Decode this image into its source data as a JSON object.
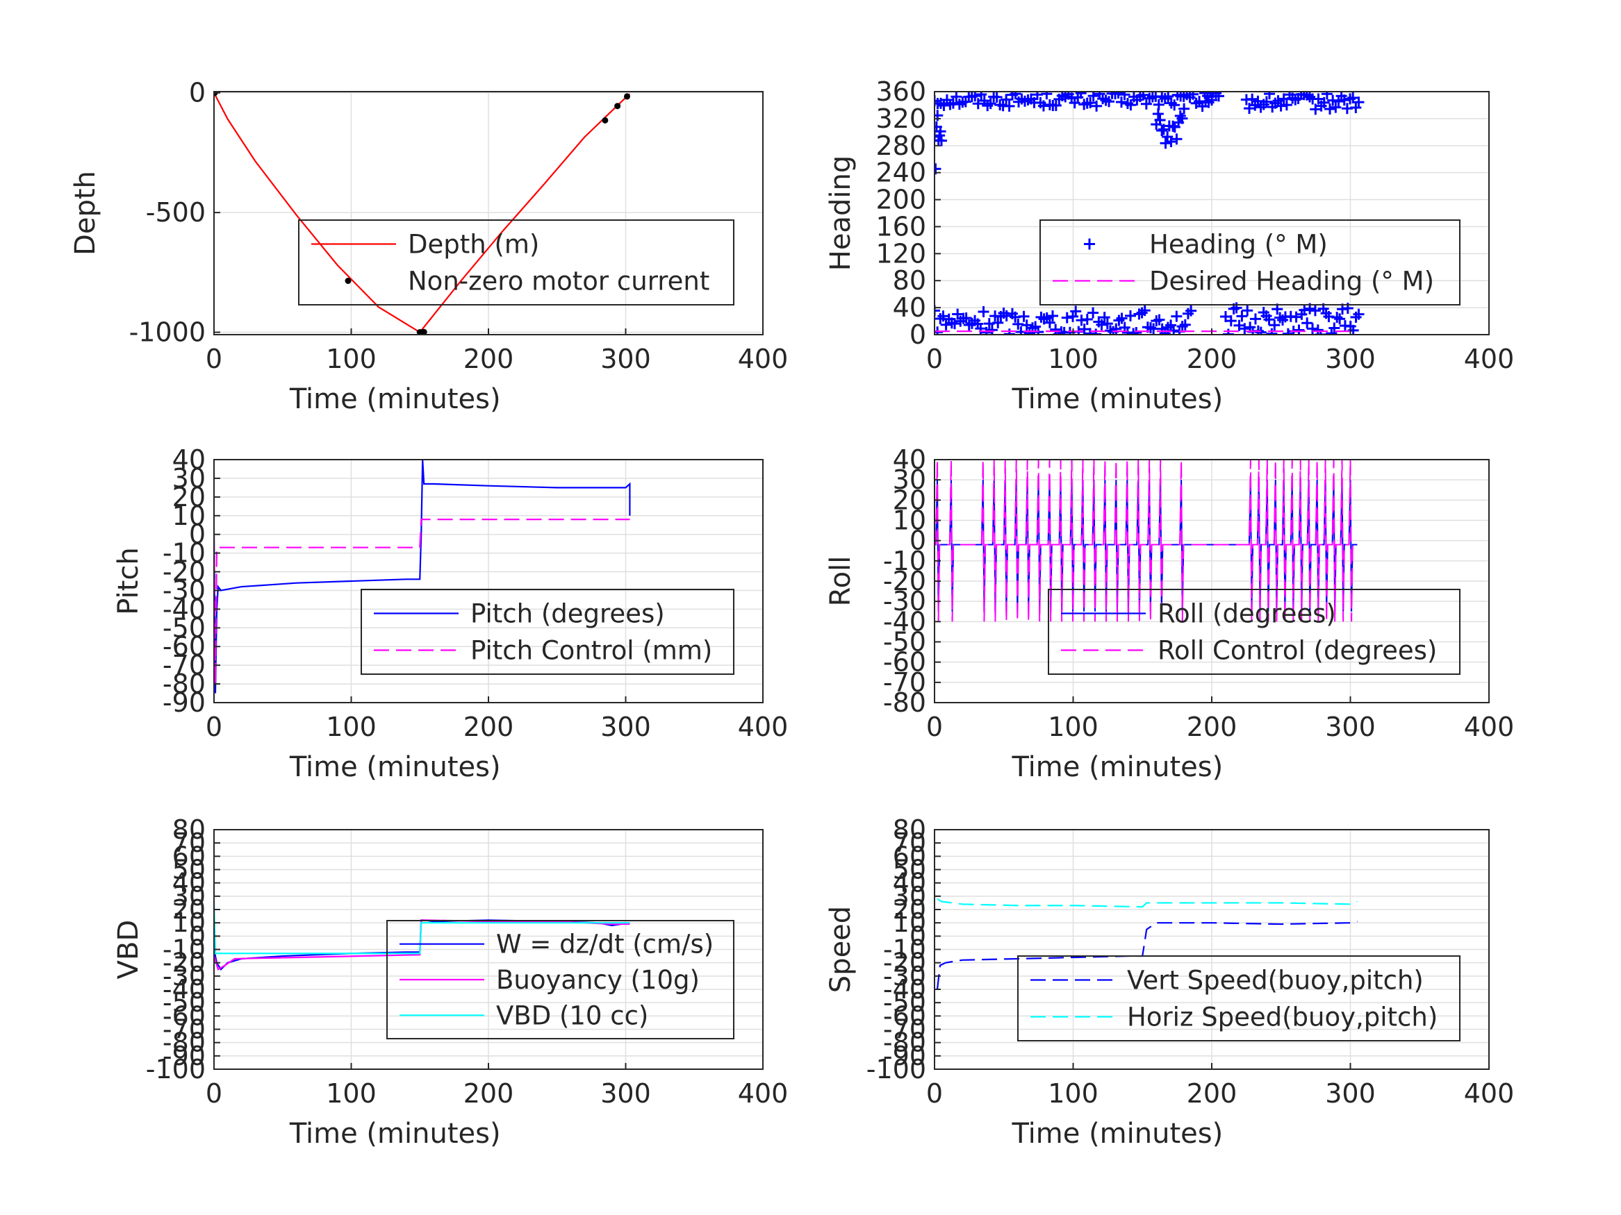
{
  "chart_data": [
    {
      "id": "depth",
      "type": "line",
      "xlabel": "Time (minutes)",
      "ylabel": "Depth",
      "xlim": [
        0,
        400
      ],
      "ylim": [
        -1010,
        5
      ],
      "xticks": [
        0,
        100,
        200,
        300,
        400
      ],
      "yticks": [
        0,
        -500,
        -1000
      ],
      "grid": true,
      "legend_position": "lower-right",
      "series": [
        {
          "name": "Depth (m)",
          "style": "line",
          "color": "#ff0000",
          "x": [
            0,
            10,
            30,
            60,
            90,
            120,
            150,
            180,
            210,
            240,
            270,
            300,
            303
          ],
          "y": [
            0,
            -110,
            -285,
            -510,
            -720,
            -895,
            -1000,
            -785,
            -580,
            -385,
            -185,
            -20,
            -5
          ]
        },
        {
          "name": "Non-zero motor current",
          "style": "dots",
          "color": "#000000",
          "x": [
            0.5,
            150,
            151,
            152,
            153,
            285,
            294,
            301
          ],
          "y": [
            0,
            -1000,
            -1001,
            -1000,
            -999,
            -115,
            -55,
            -15
          ]
        }
      ]
    },
    {
      "id": "heading",
      "type": "scatter",
      "xlabel": "Time (minutes)",
      "ylabel": "Heading",
      "xlim": [
        0,
        400
      ],
      "ylim": [
        0,
        360
      ],
      "xticks": [
        0,
        100,
        200,
        300,
        400
      ],
      "yticks": [
        0,
        40,
        80,
        120,
        160,
        200,
        240,
        280,
        320,
        360
      ],
      "grid": true,
      "legend_position": "middle-right",
      "series": [
        {
          "name": "Heading (° M)",
          "style": "plus",
          "color": "#0000ff",
          "segments": [
            {
              "x0": 0,
              "x1": 200,
              "center": 348,
              "spread": 10,
              "n": 90
            },
            {
              "x0": 160,
              "x1": 180,
              "center": 305,
              "spread": 30,
              "n": 16
            },
            {
              "x0": 195,
              "x1": 205,
              "center": 356,
              "spread": 3,
              "n": 6
            },
            {
              "x0": 225,
              "x1": 306,
              "center": 345,
              "spread": 12,
              "n": 40
            },
            {
              "x0": 0,
              "x1": 185,
              "center": 18,
              "spread": 18,
              "n": 90
            },
            {
              "x0": 210,
              "x1": 306,
              "center": 20,
              "spread": 20,
              "n": 50
            },
            {
              "x0": 0,
              "x1": 5,
              "center": 290,
              "spread": 45,
              "n": 8
            }
          ]
        },
        {
          "name": "Desired Heading (° M)",
          "style": "dash",
          "color": "#ff00ff",
          "x": [
            0,
            300
          ],
          "y": [
            5,
            5
          ]
        }
      ]
    },
    {
      "id": "pitch",
      "type": "line",
      "xlabel": "Time (minutes)",
      "ylabel": "Pitch",
      "xlim": [
        0,
        400
      ],
      "ylim": [
        -90,
        40
      ],
      "xticks": [
        0,
        100,
        200,
        300,
        400
      ],
      "yticks": [
        40,
        30,
        20,
        10,
        0,
        -10,
        -20,
        -30,
        -40,
        -50,
        -60,
        -70,
        -80,
        -90
      ],
      "grid": true,
      "legend_position": "lower-right",
      "series": [
        {
          "name": "Pitch (degrees)",
          "style": "line",
          "color": "#0000ff",
          "x": [
            0,
            1,
            2,
            3,
            5,
            20,
            60,
            100,
            140,
            150,
            151,
            152,
            153,
            160,
            200,
            250,
            300,
            303,
            303
          ],
          "y": [
            0,
            -85,
            -40,
            -28,
            -30,
            -28,
            -26,
            -25,
            -24,
            -24,
            0,
            40,
            27,
            27,
            26,
            25,
            25,
            27,
            10
          ]
        },
        {
          "name": "Pitch Control (mm)",
          "style": "dash",
          "color": "#ff00ff",
          "x": [
            0,
            1,
            2,
            150,
            151,
            300,
            303
          ],
          "y": [
            0,
            -80,
            -7,
            -7,
            8,
            8,
            8
          ]
        }
      ]
    },
    {
      "id": "roll",
      "type": "line",
      "xlabel": "Time (minutes)",
      "ylabel": "Roll",
      "xlim": [
        0,
        400
      ],
      "ylim": [
        -80,
        40
      ],
      "xticks": [
        0,
        100,
        200,
        300,
        400
      ],
      "yticks": [
        40,
        30,
        20,
        10,
        0,
        -10,
        -20,
        -30,
        -40,
        -50,
        -60,
        -70,
        -80
      ],
      "grid": true,
      "legend_position": "lower-right",
      "series": [
        {
          "name": "Roll (degrees)",
          "style": "line",
          "color": "#0000ff",
          "baseline": -2,
          "spikes_x": [
            2,
            12,
            35,
            43,
            51,
            59,
            67,
            75,
            83,
            91,
            99,
            107,
            115,
            123,
            131,
            139,
            147,
            155,
            163,
            178,
            228,
            234,
            240,
            246,
            252,
            258,
            264,
            270,
            276,
            282,
            288,
            294,
            300
          ],
          "amp_up": 30,
          "amp_down": -35
        },
        {
          "name": "Roll Control (degrees)",
          "style": "dash",
          "color": "#ff00ff",
          "baseline": -2,
          "spikes_x": [
            2,
            12,
            35,
            43,
            51,
            59,
            67,
            75,
            83,
            91,
            99,
            107,
            115,
            123,
            131,
            139,
            147,
            155,
            163,
            178,
            228,
            234,
            240,
            246,
            252,
            258,
            264,
            270,
            276,
            282,
            288,
            294,
            300
          ],
          "amp_up": 40,
          "amp_down": -40
        }
      ]
    },
    {
      "id": "vbd",
      "type": "line",
      "xlabel": "Time (minutes)",
      "ylabel": "VBD",
      "xlim": [
        0,
        400
      ],
      "ylim": [
        -100,
        80
      ],
      "xticks": [
        0,
        100,
        200,
        300,
        400
      ],
      "yticks": [
        80,
        70,
        60,
        50,
        40,
        30,
        20,
        10,
        0,
        -10,
        -20,
        -30,
        -40,
        -50,
        -60,
        -70,
        -80,
        -90,
        -100
      ],
      "ytick_labels": [
        "80",
        "70",
        "60",
        "50",
        "40",
        "30",
        "20",
        "10",
        "0",
        "-10",
        "-20",
        "-30",
        "-40",
        "-50",
        "-60",
        "-70",
        "-80",
        "-90",
        "-100"
      ],
      "grid": true,
      "legend_position": "middle-right",
      "series": [
        {
          "name": "W = dz/dt (cm/s)",
          "style": "line",
          "color": "#0000ff",
          "x": [
            0,
            2,
            5,
            10,
            20,
            50,
            100,
            140,
            150,
            151,
            153,
            160,
            200,
            250,
            280,
            290,
            303
          ],
          "y": [
            -10,
            -20,
            -25,
            -20,
            -17,
            -15,
            -13,
            -12,
            -12,
            12,
            12,
            11,
            12,
            11,
            10,
            8,
            10
          ]
        },
        {
          "name": "Buoyancy (10g)",
          "style": "line",
          "color": "#ff00ff",
          "x": [
            0,
            3,
            8,
            15,
            150,
            151,
            155,
            200,
            250,
            290,
            303
          ],
          "y": [
            -15,
            -25,
            -22,
            -17,
            -14,
            12,
            12,
            11,
            11,
            9,
            9
          ]
        },
        {
          "name": "VBD (10 cc)",
          "style": "line",
          "color": "#00ffff",
          "x": [
            0,
            1,
            2,
            150,
            151,
            303
          ],
          "y": [
            25,
            -13,
            -13,
            -13,
            10,
            10
          ]
        }
      ]
    },
    {
      "id": "speed",
      "type": "line",
      "xlabel": "Time (minutes)",
      "ylabel": "Speed",
      "xlim": [
        0,
        400
      ],
      "ylim": [
        -100,
        80
      ],
      "xticks": [
        0,
        100,
        200,
        300,
        400
      ],
      "yticks": [
        80,
        70,
        60,
        50,
        40,
        30,
        20,
        10,
        0,
        -10,
        -20,
        -30,
        -40,
        -50,
        -60,
        -70,
        -80,
        -90,
        -100
      ],
      "ytick_labels": [
        "80",
        "70",
        "60",
        "50",
        "40",
        "30",
        "20",
        "10",
        "0",
        "-10",
        "-20",
        "-30",
        "-40",
        "-50",
        "-60",
        "-70",
        "-80",
        "-90",
        "-100"
      ],
      "grid": true,
      "legend_position": "lower-right",
      "series": [
        {
          "name": "Vert Speed(buoy,pitch)",
          "style": "dash",
          "color": "#0000ff",
          "x": [
            2,
            4,
            8,
            20,
            60,
            100,
            140,
            150,
            153,
            160,
            200,
            250,
            300,
            305
          ],
          "y": [
            -40,
            -22,
            -20,
            -18,
            -17,
            -16,
            -15,
            -15,
            5,
            10,
            10,
            9,
            10,
            11
          ]
        },
        {
          "name": "Horiz Speed(buoy,pitch)",
          "style": "dash",
          "color": "#00ffff",
          "x": [
            2,
            5,
            20,
            60,
            100,
            150,
            153,
            200,
            250,
            300,
            305
          ],
          "y": [
            28,
            26,
            24,
            23,
            23,
            22,
            25,
            25,
            25,
            24,
            26
          ]
        }
      ]
    }
  ]
}
